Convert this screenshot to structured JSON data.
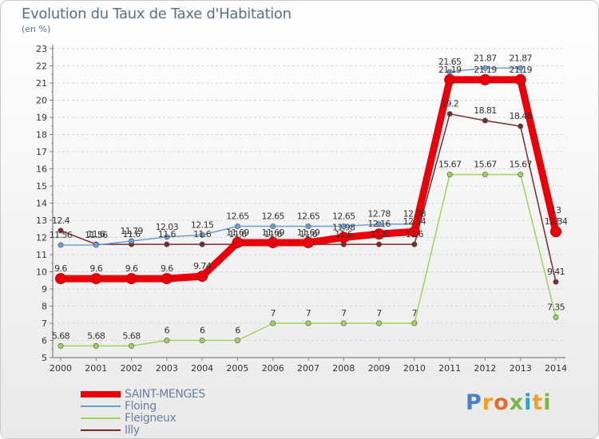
{
  "title": "Evolution du Taux de Taxe d'Habitation",
  "subtitle": "(en %)",
  "logo_text": "Proxiti",
  "chart_data": {
    "type": "line",
    "title": "Evolution du Taux de Taxe d'Habitation",
    "ylabel": "(en %)",
    "xlabel": "",
    "ylim": [
      5,
      23
    ],
    "grid": true,
    "legend_placement": "bottom-left",
    "x": [
      "2000",
      "2001",
      "2002",
      "2003",
      "2004",
      "2005",
      "2006",
      "2007",
      "2008",
      "2009",
      "2010",
      "2011",
      "2012",
      "2013",
      "2014"
    ],
    "y_ticks": [
      "5",
      "6",
      "7",
      "8",
      "9",
      "10",
      "11",
      "12",
      "13",
      "14",
      "15",
      "16",
      "17",
      "18",
      "19",
      "20",
      "21",
      "22",
      "23"
    ],
    "series": [
      {
        "name": "SAINT-MENGES",
        "color": "#e8000a",
        "values": [
          9.6,
          9.6,
          9.6,
          9.6,
          9.74,
          11.7,
          11.7,
          11.7,
          12.0,
          12.2,
          12.34,
          21.19,
          21.19,
          21.19,
          12.34
        ],
        "labels": [
          "9.6",
          "9.6",
          "9.6",
          "9.6",
          "9.74",
          "11.69",
          "11.69",
          "11.69",
          "11.98",
          "12.16",
          "12.34",
          "21.19",
          "21.19",
          "21.19",
          "12.34"
        ]
      },
      {
        "name": "Floing",
        "color": "#6a9fd4",
        "values": [
          11.56,
          11.56,
          11.79,
          12.03,
          12.15,
          12.65,
          12.65,
          12.65,
          12.65,
          12.78,
          12.78,
          21.65,
          21.87,
          21.87,
          13.0
        ],
        "labels": [
          "11.56",
          "11.56",
          "11.79",
          "12.03",
          "12.15",
          "12.65",
          "12.65",
          "12.65",
          "12.65",
          "12.78",
          "12.78",
          "21.65",
          "21.87",
          "21.87",
          "13"
        ]
      },
      {
        "name": "Fleigneux",
        "color": "#9fd45a",
        "values": [
          5.68,
          5.68,
          5.68,
          6,
          6,
          6,
          7,
          7,
          7,
          7,
          7,
          15.67,
          15.67,
          15.67,
          7.35
        ],
        "labels": [
          "5.68",
          "5.68",
          "5.68",
          "6",
          "6",
          "6",
          "7",
          "7",
          "7",
          "7",
          "7",
          "15.67",
          "15.67",
          "15.67",
          "7.35"
        ]
      },
      {
        "name": "Illy",
        "color": "#7a2a2a",
        "values": [
          12.4,
          11.6,
          11.6,
          11.6,
          11.6,
          11.6,
          11.6,
          11.6,
          11.6,
          11.6,
          11.6,
          19.2,
          18.81,
          18.48,
          9.41
        ],
        "labels": [
          "12.4",
          "11.6",
          "11.6",
          "11.6",
          "11.6",
          "11.6",
          "11.6",
          "11.6",
          "11.6",
          "11.6",
          "11.6",
          "19.2",
          "18.81",
          "18.48",
          "9.41"
        ]
      }
    ]
  }
}
